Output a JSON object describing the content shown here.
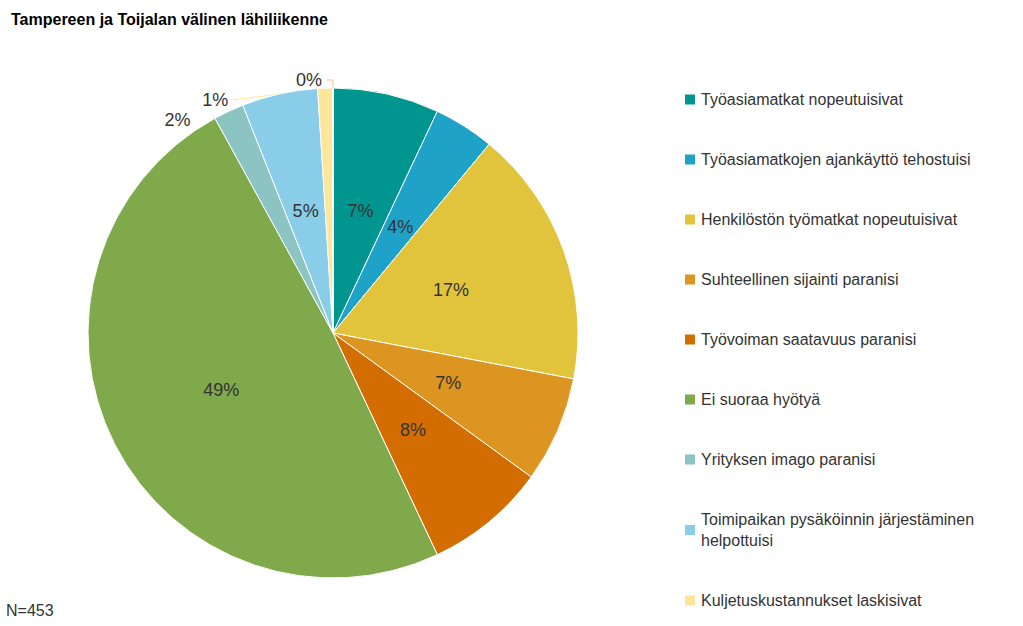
{
  "chart_data": {
    "type": "pie",
    "title": "Tampereen ja Toijalan välinen lähiliikenne",
    "categories": [
      "Työasiamatkat nopeutuisivat",
      "Työasiamatkojen ajankäyttö tehostuisi",
      "Henkilöstön työmatkat nopeutuisivat",
      "Suhteellinen sijainti paranisi",
      "Työvoiman saatavuus paranisi",
      "Ei suoraa hyötyä",
      "Yrityksen imago paranisi",
      "Toimipaikan pysäköinnin järjestäminen helpottuisi",
      "Kuljetuskustannukset laskisivat",
      null
    ],
    "values": [
      7,
      4,
      17,
      7,
      8,
      49,
      2,
      5,
      1,
      0
    ],
    "value_labels": [
      "7%",
      "4%",
      "17%",
      "7%",
      "8%",
      "49%",
      "2%",
      "5%",
      "1%",
      "0%"
    ],
    "colors": [
      "#00968F",
      "#1FA2C8",
      "#E2C43C",
      "#DD9522",
      "#D46D00",
      "#80A94C",
      "#8CC3C3",
      "#89CDE8",
      "#FCE69A",
      "#F4C08E"
    ],
    "data_labels": true,
    "legend": "right",
    "annotations": [
      "N=453"
    ]
  }
}
